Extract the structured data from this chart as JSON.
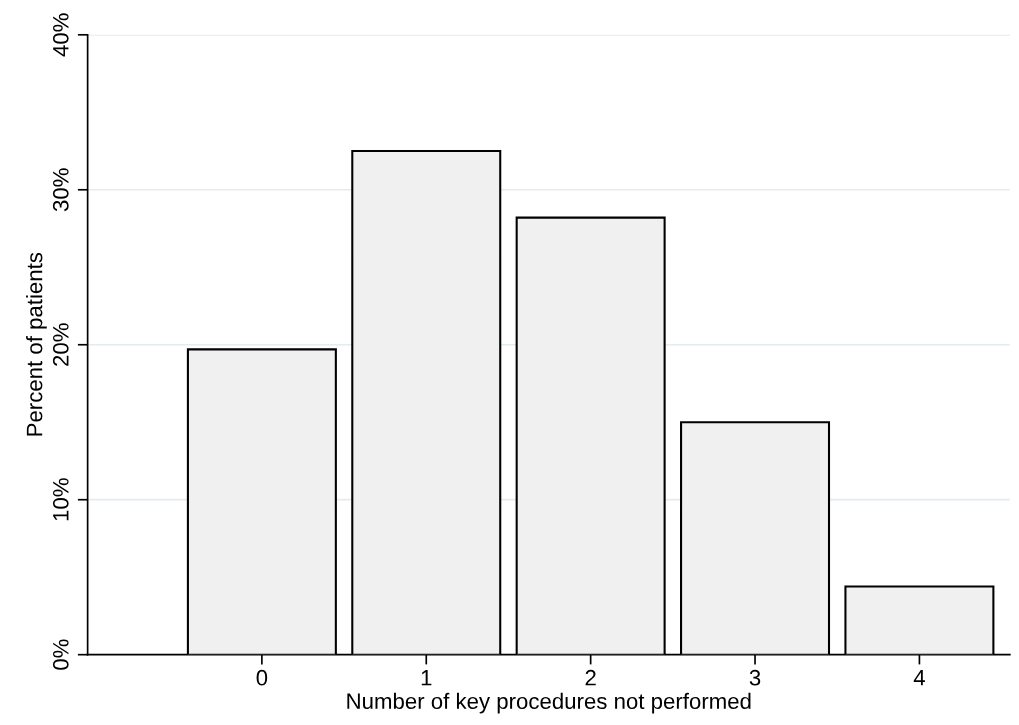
{
  "chart_data": {
    "type": "bar",
    "xlabel": "Number of key procedures not performed",
    "ylabel": "Percent of patients",
    "x": [
      0,
      1,
      2,
      3,
      4
    ],
    "values": [
      19.7,
      32.5,
      28.2,
      15.0,
      4.4
    ],
    "color": "#f0f0f0",
    "xlim": [
      -1.06,
      4.55
    ],
    "xticks": [
      0,
      1,
      2,
      3,
      4
    ],
    "ylim": [
      0,
      40
    ],
    "yticks": [
      {
        "value": 0,
        "label": "0%"
      },
      {
        "value": 10,
        "label": "10%"
      },
      {
        "value": 20,
        "label": "20%"
      },
      {
        "value": 30,
        "label": "30%"
      },
      {
        "value": 40,
        "label": "40%"
      }
    ],
    "grid": "y",
    "legend": false
  }
}
